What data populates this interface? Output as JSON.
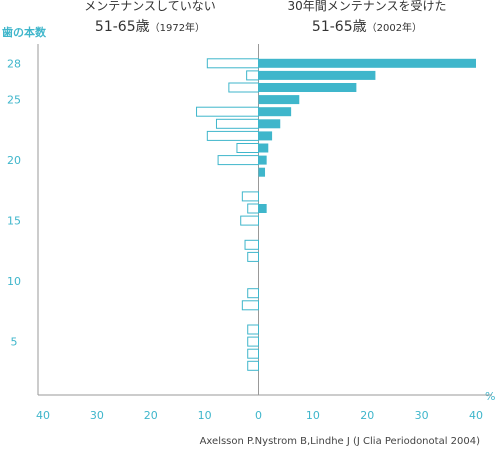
{
  "chart_data": {
    "type": "bar",
    "orientation": "horizontal-butterfly",
    "left_title": [
      "メンテナンスしていない",
      "51-65歳",
      "（1972年）"
    ],
    "right_title": [
      "30年間メンテナンスを受けた",
      "51-65歳",
      "（2002年）"
    ],
    "ylabel": "歯の本数",
    "xlabel_unit": "%",
    "x_ticks": [
      "40",
      "30",
      "20",
      "10",
      "0",
      "10",
      "20",
      "30",
      "40"
    ],
    "y_ticks": [
      "28",
      "25",
      "20",
      "15",
      "10",
      "5"
    ],
    "y_tick_values": [
      28,
      25,
      20,
      15,
      10,
      5
    ],
    "xlim": [
      0,
      40
    ],
    "ylim": [
      0,
      29
    ],
    "grid": false,
    "categories": [
      28,
      27,
      26,
      25,
      24,
      23,
      22,
      21,
      20,
      19,
      18,
      17,
      16,
      15,
      14,
      13,
      12,
      11,
      10,
      9,
      8,
      7,
      6,
      5,
      4,
      3,
      2,
      1
    ],
    "series": [
      {
        "values": [
          9.5,
          2.2,
          5.5,
          0,
          11.5,
          7.8,
          9.5,
          4,
          7.5,
          0,
          0,
          3,
          2,
          3.3,
          0,
          2.5,
          2,
          0,
          0,
          2,
          3,
          0,
          2,
          2,
          2,
          2,
          0,
          0
        ],
        "style": "outline",
        "color": "#3fb6cb"
      },
      {
        "values": [
          40,
          21.5,
          18,
          7.5,
          6,
          4,
          2.5,
          1.8,
          1.5,
          1.2,
          0,
          0,
          1.5,
          0,
          0,
          0,
          0,
          0,
          0,
          0,
          0,
          0,
          0,
          0,
          0,
          0,
          0,
          0
        ],
        "style": "filled",
        "color": "#3fb6cb"
      }
    ],
    "source": "Axelsson P.Nystrom B,Lindhe J (J Clia Periodonotal 2004)"
  }
}
